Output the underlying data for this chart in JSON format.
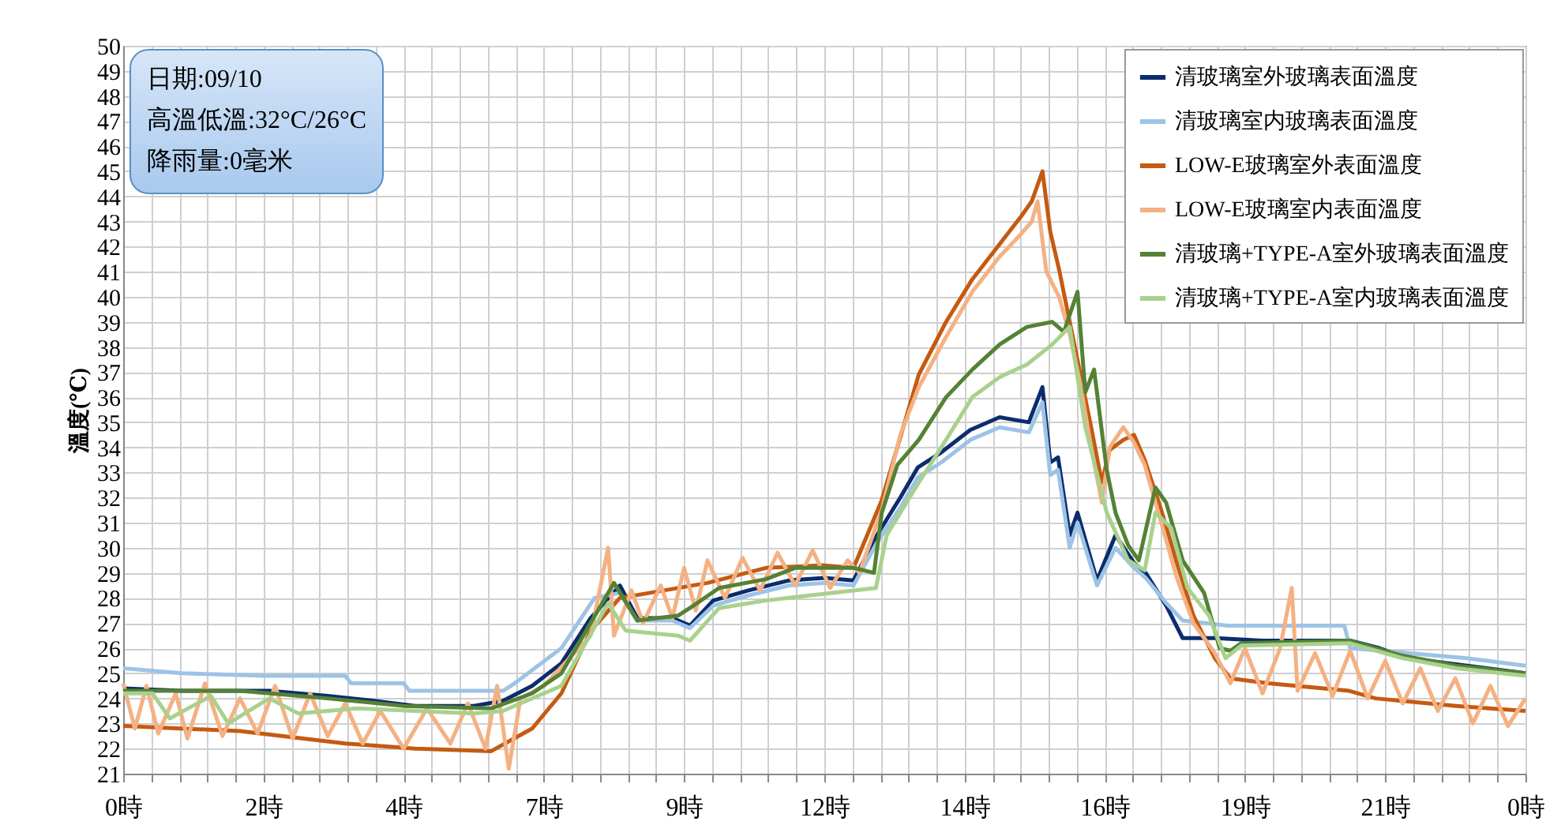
{
  "chart_data": {
    "type": "line",
    "ylabel": "溫度(℃)",
    "annotations": [
      "日期:09/10",
      "高溫低溫:32°C/26°C",
      "降雨量:0毫米"
    ],
    "xlim": [
      "--09-10T00:00",
      "--09-11T00:00"
    ],
    "ylim": [
      21,
      50
    ],
    "xticks": [
      {
        "value": "--09-10T00:00",
        "label": "0時"
      },
      {
        "value": "--09-10T00:28:48",
        "label": null
      },
      {
        "value": "--09-10T00:57:36",
        "label": null
      },
      {
        "value": "--09-10T01:26:24",
        "label": null
      },
      {
        "value": "--09-10T01:55:12",
        "label": null
      },
      {
        "value": "--09-10T02:24",
        "label": "2時"
      },
      {
        "value": "--09-10T02:52:48",
        "label": null
      },
      {
        "value": "--09-10T03:21:36",
        "label": null
      },
      {
        "value": "--09-10T03:50:24",
        "label": null
      },
      {
        "value": "--09-10T04:19:12",
        "label": null
      },
      {
        "value": "--09-10T04:48",
        "label": "4時"
      },
      {
        "value": "--09-10T05:16:48",
        "label": null
      },
      {
        "value": "--09-10T05:45:36",
        "label": null
      },
      {
        "value": "--09-10T06:14:24",
        "label": null
      },
      {
        "value": "--09-10T06:43:12",
        "label": null
      },
      {
        "value": "--09-10T07:12",
        "label": "7時"
      },
      {
        "value": "--09-10T07:40:48",
        "label": null
      },
      {
        "value": "--09-10T08:09:36",
        "label": null
      },
      {
        "value": "--09-10T08:38:24",
        "label": null
      },
      {
        "value": "--09-10T09:07:12",
        "label": null
      },
      {
        "value": "--09-10T09:36",
        "label": "9時"
      },
      {
        "value": "--09-10T10:04:48",
        "label": null
      },
      {
        "value": "--09-10T10:33:36",
        "label": null
      },
      {
        "value": "--09-10T11:02:24",
        "label": null
      },
      {
        "value": "--09-10T11:31:12",
        "label": null
      },
      {
        "value": "--09-10T12:00",
        "label": "12時"
      },
      {
        "value": "--09-10T12:28:48",
        "label": null
      },
      {
        "value": "--09-10T12:57:36",
        "label": null
      },
      {
        "value": "--09-10T13:26:24",
        "label": null
      },
      {
        "value": "--09-10T13:55:12",
        "label": null
      },
      {
        "value": "--09-10T14:24",
        "label": "14時"
      },
      {
        "value": "--09-10T14:52:48",
        "label": null
      },
      {
        "value": "--09-10T15:21:36",
        "label": null
      },
      {
        "value": "--09-10T15:50:24",
        "label": null
      },
      {
        "value": "--09-10T16:19:12",
        "label": null
      },
      {
        "value": "--09-10T16:48",
        "label": "16時"
      },
      {
        "value": "--09-10T17:16:48",
        "label": null
      },
      {
        "value": "--09-10T17:45:36",
        "label": null
      },
      {
        "value": "--09-10T18:14:24",
        "label": null
      },
      {
        "value": "--09-10T18:43:12",
        "label": null
      },
      {
        "value": "--09-10T19:12",
        "label": "19時"
      },
      {
        "value": "--09-10T19:40:48",
        "label": null
      },
      {
        "value": "--09-10T20:09:36",
        "label": null
      },
      {
        "value": "--09-10T20:38:24",
        "label": null
      },
      {
        "value": "--09-10T21:07:12",
        "label": null
      },
      {
        "value": "--09-10T21:36",
        "label": "21時"
      },
      {
        "value": "--09-10T22:04:48",
        "label": null
      },
      {
        "value": "--09-10T22:33:36",
        "label": null
      },
      {
        "value": "--09-10T23:02:24",
        "label": null
      },
      {
        "value": "--09-10T23:31:12",
        "label": null
      },
      {
        "value": "--09-11T00:00",
        "label": "0時"
      }
    ],
    "yticks": [
      21,
      22,
      23,
      24,
      25,
      26,
      27,
      28,
      29,
      30,
      31,
      32,
      33,
      34,
      35,
      36,
      37,
      38,
      39,
      40,
      41,
      42,
      43,
      44,
      45,
      46,
      47,
      48,
      49,
      50
    ],
    "grid": true,
    "legend": "top right",
    "line_style": "solid",
    "marker": "none",
    "series": [
      {
        "name": "清玻璃室外玻璃表面溫度",
        "color": "#0b2d6e",
        "x": [
          "--09-10T00:00",
          "--09-10T01:00",
          "--09-10T02:30",
          "--09-10T03:30",
          "--09-10T04:18",
          "--09-10T05:00",
          "--09-10T06:00",
          "--09-10T06:30",
          "--09-10T07:00",
          "--09-10T07:30",
          "--09-10T08:00",
          "--09-10T08:30",
          "--09-10T08:48",
          "--09-10T09:24",
          "--09-10T09:42",
          "--09-10T10:06",
          "--09-10T10:42",
          "--09-10T11:24",
          "--09-10T12:00",
          "--09-10T12:30",
          "--09-10T12:54",
          "--09-10T13:18",
          "--09-10T13:36",
          "--09-10T14:00",
          "--09-10T14:30",
          "--09-10T15:00",
          "--09-10T15:30",
          "--09-10T15:44",
          "--09-10T15:52",
          "--09-10T16:00",
          "--09-10T16:12",
          "--09-10T16:20",
          "--09-10T16:40",
          "--09-10T16:59",
          "--09-10T17:18",
          "--09-10T17:30",
          "--09-10T17:51",
          "--09-10T18:08",
          "--09-10T18:42",
          "--09-10T19:30",
          "--09-10T20:30",
          "--09-10T21:00",
          "--09-10T21:30",
          "--09-10T22:00",
          "--09-10T23:00",
          "--09-11T00:00"
        ],
        "values": [
          24.4,
          24.3,
          24.3,
          24.1,
          23.9,
          23.7,
          23.7,
          23.9,
          24.5,
          25.4,
          27.2,
          28.5,
          27.2,
          27.2,
          26.9,
          27.9,
          28.3,
          28.7,
          28.8,
          28.7,
          30.5,
          32,
          33.2,
          33.8,
          34.7,
          35.2,
          35,
          36.4,
          33.4,
          33.6,
          30.5,
          31.4,
          28.7,
          30.5,
          29.4,
          29,
          27.7,
          26.4,
          26.4,
          26.3,
          26.3,
          26.3,
          26,
          25.6,
          25.3,
          25
        ]
      },
      {
        "name": "清玻璃室内玻璃表面溫度",
        "color": "#9dc3e6",
        "x": [
          "--09-10T00:00",
          "--09-10T01:00",
          "--09-10T02:24",
          "--09-10T03:48",
          "--09-10T03:54",
          "--09-10T04:48",
          "--09-10T04:54",
          "--09-10T06:30",
          "--09-10T06:42",
          "--09-10T07:30",
          "--09-10T08:04",
          "--09-10T08:30",
          "--09-10T08:48",
          "--09-10T09:24",
          "--09-10T09:42",
          "--09-10T10:06",
          "--09-10T10:42",
          "--09-10T11:24",
          "--09-10T12:00",
          "--09-10T12:30",
          "--09-10T12:54",
          "--09-10T13:18",
          "--09-10T13:36",
          "--09-10T14:00",
          "--09-10T14:30",
          "--09-10T15:00",
          "--09-10T15:30",
          "--09-10T15:44",
          "--09-10T15:52",
          "--09-10T16:00",
          "--09-10T16:12",
          "--09-10T16:20",
          "--09-10T16:40",
          "--09-10T16:59",
          "--09-10T17:18",
          "--09-10T17:30",
          "--09-10T17:51",
          "--09-10T18:08",
          "--09-10T18:54",
          "--09-10T20:54",
          "--09-10T21:00",
          "--09-10T23:00",
          "--09-11T00:00"
        ],
        "values": [
          25.2,
          25,
          24.9,
          24.9,
          24.6,
          24.6,
          24.3,
          24.3,
          24.6,
          26,
          28,
          28.2,
          27.1,
          27.1,
          26.8,
          27.7,
          28.1,
          28.5,
          28.6,
          28.5,
          30.2,
          31.6,
          32.8,
          33.4,
          34.3,
          34.8,
          34.6,
          35.8,
          32.9,
          33.1,
          30,
          31,
          28.5,
          30,
          29.2,
          28.8,
          27.8,
          27.1,
          26.9,
          26.9,
          26,
          25.6,
          25.3
        ]
      },
      {
        "name": "LOW-E玻璃室外表面溫度",
        "color": "#c55a11",
        "x": [
          "--09-10T00:00",
          "--09-10T02:00",
          "--09-10T03:48",
          "--09-10T05:00",
          "--09-10T06:18",
          "--09-10T07:00",
          "--09-10T07:30",
          "--09-10T08:00",
          "--09-10T08:30",
          "--09-10T09:00",
          "--09-10T10:00",
          "--09-10T11:00",
          "--09-10T12:00",
          "--09-10T12:30",
          "--09-10T12:59",
          "--09-10T13:37",
          "--09-10T14:05",
          "--09-10T14:32",
          "--09-10T15:00",
          "--09-10T15:22",
          "--09-10T15:33",
          "--09-10T15:44",
          "--09-10T15:52",
          "--09-10T16:01",
          "--09-10T16:12",
          "--09-10T16:23",
          "--09-10T16:34",
          "--09-10T16:45",
          "--09-10T16:53",
          "--09-10T17:07",
          "--09-10T17:18",
          "--09-10T17:29",
          "--09-10T17:46",
          "--09-10T18:02",
          "--09-10T18:19",
          "--09-10T18:41",
          "--09-10T18:57",
          "--09-10T19:36",
          "--09-10T20:59",
          "--09-10T21:26",
          "--09-10T22:49",
          "--09-11T00:00"
        ],
        "values": [
          22.9,
          22.7,
          22.2,
          22,
          21.9,
          22.8,
          24.2,
          26.7,
          28,
          28.2,
          28.6,
          29.2,
          29.3,
          29.2,
          31.9,
          36.9,
          39,
          40.7,
          42.1,
          43.2,
          43.8,
          45,
          42.6,
          41.1,
          39,
          36.9,
          34.8,
          32.6,
          33.9,
          34.3,
          34.5,
          33.5,
          31.5,
          29.4,
          27.3,
          25.6,
          24.8,
          24.6,
          24.3,
          24,
          23.7,
          23.5
        ]
      },
      {
        "name": "LOW-E玻璃室内表面溫度",
        "color": "#f4b183",
        "x": [
          "--09-10T00:00",
          "--09-10T00:12",
          "--09-10T00:24",
          "--09-10T00:36",
          "--09-10T00:54",
          "--09-10T01:06",
          "--09-10T01:24",
          "--09-10T01:42",
          "--09-10T02:00",
          "--09-10T02:18",
          "--09-10T02:36",
          "--09-10T02:54",
          "--09-10T03:12",
          "--09-10T03:30",
          "--09-10T03:48",
          "--09-10T04:06",
          "--09-10T04:24",
          "--09-10T04:48",
          "--09-10T05:12",
          "--09-10T05:36",
          "--09-10T05:54",
          "--09-10T06:12",
          "--09-10T06:24",
          "--09-10T06:36",
          "--09-10T06:48",
          "--09-10T07:12",
          "--09-10T07:36",
          "--09-10T08:00",
          "--09-10T08:18",
          "--09-10T08:24",
          "--09-10T08:42",
          "--09-10T08:54",
          "--09-10T09:12",
          "--09-10T09:24",
          "--09-10T09:36",
          "--09-10T09:48",
          "--09-10T10:00",
          "--09-10T10:18",
          "--09-10T10:36",
          "--09-10T10:54",
          "--09-10T11:12",
          "--09-10T11:30",
          "--09-10T11:48",
          "--09-10T12:06",
          "--09-10T12:24",
          "--09-10T12:36",
          "--09-10T12:59",
          "--09-10T13:18",
          "--09-10T13:37",
          "--09-10T14:05",
          "--09-10T14:32",
          "--09-10T15:00",
          "--09-10T15:22",
          "--09-10T15:33",
          "--09-10T15:39",
          "--09-10T15:48",
          "--09-10T16:01",
          "--09-10T16:12",
          "--09-10T16:23",
          "--09-10T16:34",
          "--09-10T16:45",
          "--09-10T16:53",
          "--09-10T17:07",
          "--09-10T17:18",
          "--09-10T17:29",
          "--09-10T17:46",
          "--09-10T18:02",
          "--09-10T18:19",
          "--09-10T18:41",
          "--09-10T18:57",
          "--09-10T19:12",
          "--09-10T19:30",
          "--09-10T19:48",
          "--09-10T20:00",
          "--09-10T20:06",
          "--09-10T20:24",
          "--09-10T20:42",
          "--09-10T21:00",
          "--09-10T21:18",
          "--09-10T21:36",
          "--09-10T21:54",
          "--09-10T22:12",
          "--09-10T22:30",
          "--09-10T22:48",
          "--09-10T23:06",
          "--09-10T23:24",
          "--09-10T23:42",
          "--09-11T00:00"
        ],
        "values": [
          24.6,
          22.8,
          24.5,
          22.6,
          24.2,
          22.4,
          24.6,
          22.5,
          24,
          22.6,
          24.5,
          22.4,
          24.2,
          22.5,
          23.8,
          22.2,
          23.5,
          22,
          23.6,
          22.2,
          23.8,
          22,
          24.5,
          21.2,
          24,
          24.5,
          25.5,
          26.5,
          30,
          26.5,
          28.3,
          27,
          28.5,
          27.2,
          29.2,
          27.5,
          29.5,
          28,
          29.6,
          28.3,
          29.8,
          28.5,
          29.9,
          28.4,
          29.5,
          29,
          31.5,
          34.5,
          36.4,
          38.4,
          40.2,
          41.6,
          42.5,
          43,
          43.8,
          41,
          40,
          38.5,
          36.5,
          34,
          31.8,
          34,
          34.8,
          34.2,
          33.3,
          31,
          28.8,
          27,
          25.8,
          24.6,
          26,
          24.2,
          26,
          28.4,
          24.3,
          25.8,
          24.1,
          25.9,
          24,
          25.5,
          23.8,
          25.2,
          23.5,
          24.8,
          23,
          24.5,
          22.9,
          24
        ]
      },
      {
        "name": "清玻璃+TYPE-A室外玻璃表面溫度",
        "color": "#548235",
        "x": [
          "--09-10T00:00",
          "--09-10T02:00",
          "--09-10T03:30",
          "--09-10T04:48",
          "--09-10T06:18",
          "--09-10T07:00",
          "--09-10T07:30",
          "--09-10T08:00",
          "--09-10T08:24",
          "--09-10T08:48",
          "--09-10T09:30",
          "--09-10T09:42",
          "--09-10T10:12",
          "--09-10T11:00",
          "--09-10T11:30",
          "--09-10T12:30",
          "--09-10T12:51",
          "--09-10T12:59",
          "--09-10T13:15",
          "--09-10T13:37",
          "--09-10T14:05",
          "--09-10T14:32",
          "--09-10T15:00",
          "--09-10T15:28",
          "--09-10T15:54",
          "--09-10T16:06",
          "--09-10T16:20",
          "--09-10T16:28",
          "--09-10T16:37",
          "--09-10T16:50",
          "--09-10T16:59",
          "--09-10T17:12",
          "--09-10T17:23",
          "--09-10T17:40",
          "--09-10T17:51",
          "--09-10T18:08",
          "--09-10T18:30",
          "--09-10T18:46",
          "--09-10T18:57",
          "--09-10T19:08",
          "--09-10T20:59",
          "--09-10T21:54",
          "--09-10T22:49",
          "--09-11T00:00"
        ],
        "values": [
          24.3,
          24.3,
          24,
          23.7,
          23.6,
          24.2,
          25,
          27,
          28.6,
          27.1,
          27.3,
          27.6,
          28.4,
          28.75,
          29.2,
          29.2,
          29,
          31.4,
          33.3,
          34.3,
          36,
          37.1,
          38.1,
          38.8,
          39,
          38.6,
          40.2,
          36.2,
          37.1,
          33.1,
          31.4,
          30.1,
          29.5,
          32.4,
          31.8,
          29.5,
          28.2,
          26,
          25.9,
          26.2,
          26.3,
          25.7,
          25.3,
          25
        ]
      },
      {
        "name": "清玻璃+TYPE-A室内玻璃表面溫度",
        "color": "#a9d18e",
        "x": [
          "--09-10T00:00",
          "--09-10T00:30",
          "--09-10T00:48",
          "--09-10T01:30",
          "--09-10T01:48",
          "--09-10T02:30",
          "--09-10T03:00",
          "--09-10T04:00",
          "--09-10T05:00",
          "--09-10T06:00",
          "--09-10T06:30",
          "--09-10T07:30",
          "--09-10T08:18",
          "--09-10T08:36",
          "--09-10T09:30",
          "--09-10T09:42",
          "--09-10T10:12",
          "--09-10T11:00",
          "--09-10T12:30",
          "--09-10T12:53",
          "--09-10T13:04",
          "--09-10T13:37",
          "--09-10T14:05",
          "--09-10T14:32",
          "--09-10T15:00",
          "--09-10T15:28",
          "--09-10T15:54",
          "--09-10T16:12",
          "--09-10T16:28",
          "--09-10T16:50",
          "--09-10T17:12",
          "--09-10T17:29",
          "--09-10T17:40",
          "--09-10T17:56",
          "--09-10T18:13",
          "--09-10T18:35",
          "--09-10T18:52",
          "--09-10T19:08",
          "--09-10T20:59",
          "--09-10T21:54",
          "--09-10T22:49",
          "--09-11T00:00"
        ],
        "values": [
          24.2,
          24.2,
          23.2,
          24.1,
          23,
          24,
          23.4,
          23.6,
          23.5,
          23.4,
          23.5,
          24.5,
          27.8,
          26.7,
          26.5,
          26.3,
          27.6,
          27.9,
          28.3,
          28.4,
          30.5,
          32.6,
          34.3,
          36,
          36.8,
          37.3,
          38.1,
          38.8,
          34.8,
          31.4,
          29.5,
          29.1,
          31.4,
          30.8,
          28.4,
          27.3,
          25.6,
          26.1,
          26.2,
          25.6,
          25.2,
          24.9
        ]
      }
    ]
  }
}
